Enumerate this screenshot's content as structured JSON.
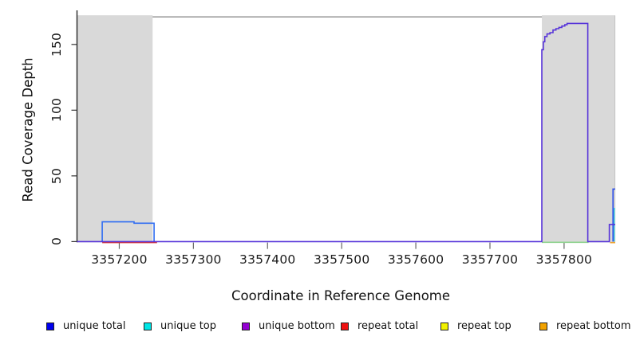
{
  "chart_data": {
    "type": "line",
    "title": "",
    "xlabel": "Coordinate in Reference Genome",
    "ylabel": "Read Coverage Depth",
    "xlim": [
      3357143,
      3357869
    ],
    "ylim": [
      0,
      172
    ],
    "xticks": [
      3357200,
      3357300,
      3357400,
      3357500,
      3357600,
      3357700,
      3357800
    ],
    "yticks": [
      0,
      50,
      100,
      150
    ],
    "grid": false,
    "plot_background": "#ffffff",
    "box_top_color": "#8c8c8c",
    "repeat_region_color": "#d9d9d9",
    "repeat_regions": [
      {
        "start": 3357143,
        "end": 3357245
      },
      {
        "start": 3357770,
        "end": 3357869
      }
    ],
    "series": [
      {
        "name": "repeat total",
        "color": "#dc3232",
        "dy": 1.2,
        "points": [
          [
            3357177,
            0
          ],
          [
            3357251,
            0
          ]
        ]
      },
      {
        "name": "repeat bottom",
        "color": "#eea332",
        "dy": 1.3,
        "points": [
          [
            3357862,
            0
          ],
          [
            3357869,
            0
          ]
        ]
      },
      {
        "name": "repeat top",
        "color": "#8fd38f",
        "dy": 0.9,
        "points": [
          [
            3357770,
            0
          ],
          [
            3357833,
            0
          ]
        ]
      },
      {
        "name": "unique top",
        "color": "#3ecfe0",
        "dy": 0,
        "points": [
          [
            3357867.5,
            0
          ],
          [
            3357867.5,
            25
          ],
          [
            3357869,
            25
          ]
        ]
      },
      {
        "name": "unique total",
        "color": "#2f6df2",
        "dy": 0,
        "points": [
          [
            3357177,
            0
          ],
          [
            3357177,
            15
          ],
          [
            3357220,
            15
          ],
          [
            3357220,
            14
          ],
          [
            3357247,
            14
          ],
          [
            3357247,
            0
          ]
        ]
      },
      {
        "name": "unique total",
        "color": "#2f4fe8",
        "dy": 0,
        "points": [
          [
            3357866,
            0
          ],
          [
            3357866,
            40
          ],
          [
            3357869,
            40
          ]
        ]
      },
      {
        "name": "unique bottom",
        "color": "#5633d9",
        "dy": 0,
        "points": [
          [
            3357143,
            0
          ],
          [
            3357770,
            0
          ],
          [
            3357770,
            146
          ],
          [
            3357772,
            146
          ],
          [
            3357772,
            152
          ],
          [
            3357774,
            152
          ],
          [
            3357774,
            156
          ],
          [
            3357777,
            156
          ],
          [
            3357777,
            158
          ],
          [
            3357781,
            158
          ],
          [
            3357781,
            159
          ],
          [
            3357785,
            159
          ],
          [
            3357785,
            161
          ],
          [
            3357789,
            161
          ],
          [
            3357789,
            162
          ],
          [
            3357793,
            162
          ],
          [
            3357793,
            163
          ],
          [
            3357797,
            163
          ],
          [
            3357797,
            164
          ],
          [
            3357801,
            164
          ],
          [
            3357801,
            165
          ],
          [
            3357804,
            165
          ],
          [
            3357804,
            166
          ],
          [
            3357832,
            166
          ],
          [
            3357832,
            0
          ],
          [
            3357861,
            0
          ],
          [
            3357861,
            13
          ],
          [
            3357869,
            13
          ]
        ]
      }
    ],
    "legend": {
      "position": "bottom",
      "items": [
        {
          "label": "unique total",
          "color": "#0000ee"
        },
        {
          "label": "unique top",
          "color": "#00e6e6"
        },
        {
          "label": "unique bottom",
          "color": "#9400d3"
        },
        {
          "label": "repeat total",
          "color": "#ee1111"
        },
        {
          "label": "repeat top",
          "color": "#f2f200"
        },
        {
          "label": "repeat bottom",
          "color": "#f2a200"
        }
      ]
    }
  }
}
